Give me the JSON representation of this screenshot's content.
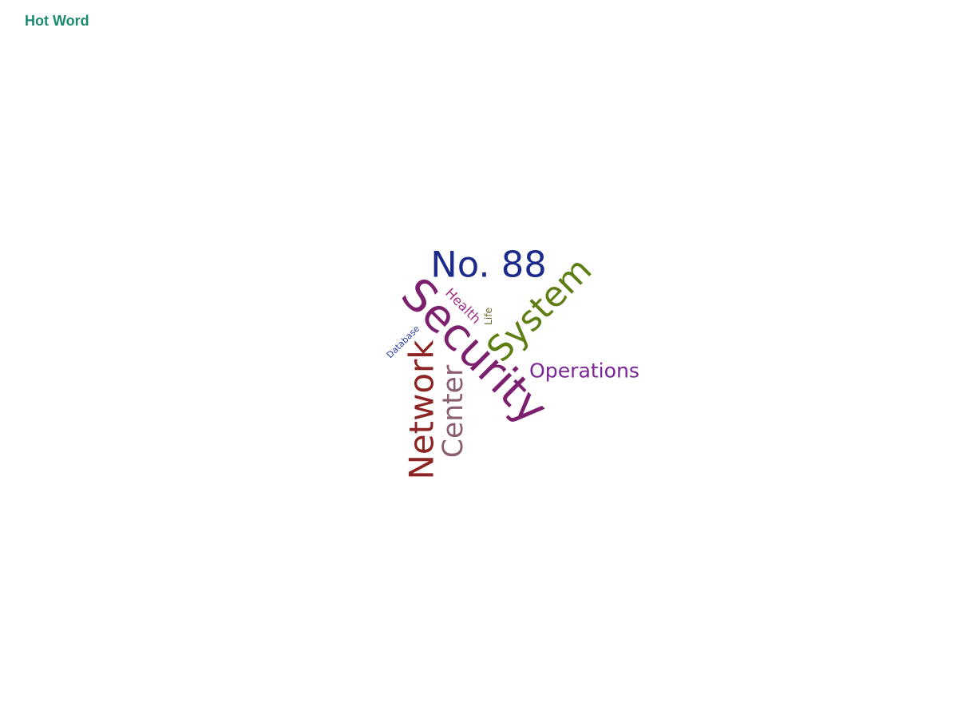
{
  "colors": {
    "title": "#1a8a72"
  },
  "chart_data": {
    "type": "wordcloud",
    "title": "Hot Word",
    "words": [
      {
        "text": "Security",
        "weight": 100,
        "color": "#7c1f6e",
        "rotation": 45
      },
      {
        "text": "No. 88",
        "weight": 80,
        "color": "#1c2a8c",
        "rotation": 0
      },
      {
        "text": "System",
        "weight": 78,
        "color": "#5e7d12",
        "rotation": -45
      },
      {
        "text": "Network",
        "weight": 75,
        "color": "#8b2422",
        "rotation": -90
      },
      {
        "text": "Center",
        "weight": 62,
        "color": "#8a5e70",
        "rotation": -90
      },
      {
        "text": "Operations",
        "weight": 45,
        "color": "#7b2595",
        "rotation": 0
      },
      {
        "text": "Health",
        "weight": 30,
        "color": "#a0308a",
        "rotation": 45
      },
      {
        "text": "Life",
        "weight": 22,
        "color": "#6e6a30",
        "rotation": -90
      },
      {
        "text": "Database",
        "weight": 20,
        "color": "#2b3a9e",
        "rotation": -45
      }
    ]
  }
}
